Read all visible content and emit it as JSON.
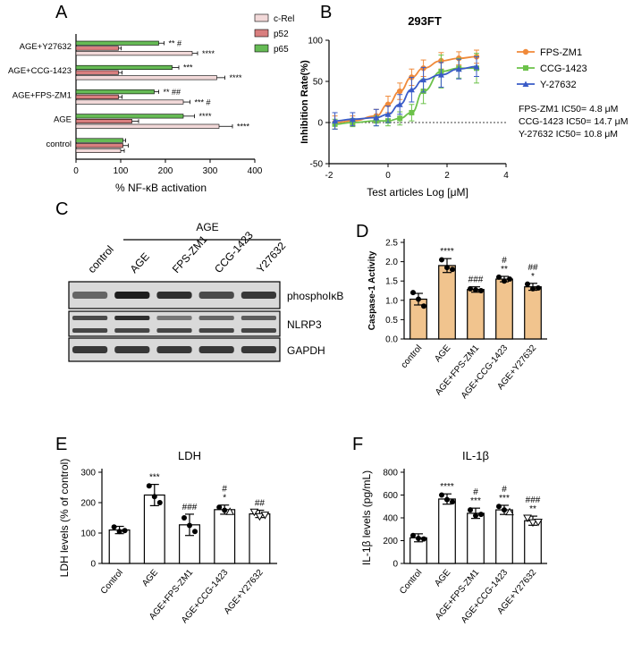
{
  "colors": {
    "crel": "#f2d9d9",
    "p52": "#d97f7f",
    "p65": "#66bb55",
    "fps": "#f08a3a",
    "ccg": "#6cc24a",
    "y27": "#3a5bc7",
    "caspase_fill": "#f1c48e",
    "white": "#ffffff",
    "black": "#000000"
  },
  "panels": {
    "A": {
      "letter": "A"
    },
    "B": {
      "letter": "B"
    },
    "C": {
      "letter": "C"
    },
    "D": {
      "letter": "D"
    },
    "E": {
      "letter": "E"
    },
    "F": {
      "letter": "F"
    }
  },
  "chart_data": [
    {
      "type": "bar",
      "panel": "A",
      "orientation": "horizontal",
      "xlabel": "% NF-κB activation",
      "xlim": [
        0,
        400
      ],
      "xticks": [
        "0",
        "100",
        "200",
        "300",
        "400"
      ],
      "categories": [
        "AGE+Y27632",
        "AGE+CCG-1423",
        "AGE+FPS-ZM1",
        "AGE",
        "control"
      ],
      "series": [
        {
          "name": "p65",
          "values": [
            185,
            215,
            175,
            240,
            105
          ],
          "errors": [
            12,
            15,
            10,
            25,
            6
          ],
          "sig": [
            "** #",
            "***",
            "** ##",
            "****",
            ""
          ]
        },
        {
          "name": "p52",
          "values": [
            95,
            95,
            95,
            125,
            105
          ],
          "errors": [
            6,
            8,
            8,
            15,
            12
          ],
          "sig": [
            "",
            "",
            "",
            "",
            ""
          ]
        },
        {
          "name": "c-Rel",
          "values": [
            260,
            315,
            240,
            320,
            100
          ],
          "errors": [
            12,
            18,
            15,
            30,
            8
          ],
          "sig": [
            "****",
            "****",
            "*** #",
            "****",
            ""
          ]
        }
      ],
      "legend": [
        "c-Rel",
        "p52",
        "p65"
      ]
    },
    {
      "type": "line",
      "panel": "B",
      "title": "293FT",
      "xlabel": "Test articles Log [μM]",
      "ylabel": "Inhibition Rate(%)",
      "xlim": [
        -2,
        4
      ],
      "ylim": [
        -50,
        100
      ],
      "xticks": [
        "-2",
        "0",
        "2",
        "4"
      ],
      "yticks": [
        "-50",
        "0",
        "50",
        "100"
      ],
      "series": [
        {
          "name": "FPS-ZM1",
          "x": [
            -1.8,
            -1.2,
            -0.4,
            0,
            0.4,
            0.8,
            1.2,
            1.8,
            2.4,
            3
          ],
          "y": [
            0,
            2,
            8,
            22,
            38,
            55,
            66,
            75,
            78,
            80
          ],
          "errors": [
            8,
            6,
            8,
            10,
            10,
            10,
            10,
            10,
            8,
            8
          ]
        },
        {
          "name": "CCG-1423",
          "x": [
            -1.8,
            -1.2,
            -0.4,
            0,
            0.4,
            0.8,
            1.2,
            1.8,
            2.4,
            3
          ],
          "y": [
            -2,
            0,
            2,
            2,
            5,
            12,
            38,
            62,
            66,
            66
          ],
          "errors": [
            6,
            5,
            6,
            6,
            8,
            10,
            15,
            20,
            12,
            18
          ]
        },
        {
          "name": "Y-27632",
          "x": [
            -1.8,
            -1.2,
            -0.4,
            0,
            0.4,
            0.8,
            1.2,
            1.8,
            2.4,
            3
          ],
          "y": [
            2,
            4,
            6,
            10,
            22,
            40,
            52,
            58,
            65,
            68
          ],
          "errors": [
            10,
            8,
            10,
            10,
            12,
            15,
            15,
            15,
            12,
            12
          ]
        }
      ],
      "annotations": [
        "FPS-ZM1 IC50= 4.8 μM",
        "CCG-1423 IC50= 14.7 μM",
        "Y-27632 IC50= 10.8 μM"
      ]
    },
    {
      "type": "bar",
      "panel": "D",
      "ylabel": "Caspase-1 Activity",
      "ylim": [
        0,
        2.5
      ],
      "yticks": [
        "0.0",
        "0.5",
        "1.0",
        "1.5",
        "2.0",
        "2.5"
      ],
      "categories": [
        "control",
        "AGE",
        "AGE+FPS-ZM1",
        "AGE+CCG-1423",
        "AGE+Y27632"
      ],
      "values": [
        1.03,
        1.9,
        1.28,
        1.55,
        1.35
      ],
      "errors": [
        0.15,
        0.18,
        0.07,
        0.07,
        0.09
      ],
      "points": [
        [
          1.2,
          1.03,
          0.85
        ],
        [
          2.05,
          1.85,
          1.8
        ],
        [
          1.3,
          1.27,
          1.25
        ],
        [
          1.6,
          1.5,
          1.55
        ],
        [
          1.42,
          1.3,
          1.32
        ]
      ],
      "sig_top": [
        "",
        "****",
        "",
        "#",
        "##"
      ],
      "sig_bottom": [
        "",
        "",
        "###",
        "**",
        "*"
      ]
    },
    {
      "type": "bar",
      "panel": "E",
      "title": "LDH",
      "ylabel": "LDH levels (% of control)",
      "ylim": [
        0,
        300
      ],
      "yticks": [
        "0",
        "100",
        "200",
        "300"
      ],
      "categories": [
        "Control",
        "AGE",
        "AGE+FPS-ZM1",
        "AGE+CCG-1423",
        "AGE+Y27632"
      ],
      "values": [
        110,
        225,
        127,
        177,
        163
      ],
      "errors": [
        12,
        35,
        35,
        15,
        12
      ],
      "points": [
        [
          120,
          105,
          108
        ],
        [
          255,
          220,
          200
        ],
        [
          150,
          125,
          105
        ],
        [
          185,
          175,
          170
        ],
        [
          170,
          155,
          160
        ]
      ],
      "sig_top": [
        "",
        "***",
        "###",
        "#",
        "##"
      ],
      "sig_bottom": [
        "",
        "",
        "",
        "*",
        ""
      ]
    },
    {
      "type": "bar",
      "panel": "F",
      "title": "IL-1β",
      "ylabel": "IL-1β levels (pg/mL)",
      "ylim": [
        0,
        800
      ],
      "yticks": [
        "0",
        "200",
        "400",
        "600",
        "800"
      ],
      "categories": [
        "Control",
        "AGE",
        "AGE+FPS-ZM1",
        "AGE+CCG-1423",
        "AGE+Y27632"
      ],
      "values": [
        225,
        565,
        440,
        470,
        375
      ],
      "errors": [
        35,
        45,
        45,
        40,
        40
      ],
      "points": [
        [
          245,
          220,
          215
        ],
        [
          600,
          560,
          540
        ],
        [
          470,
          420,
          430
        ],
        [
          500,
          470,
          450
        ],
        [
          400,
          360,
          365
        ]
      ],
      "sig_top": [
        "",
        "****",
        "#",
        "#",
        "###"
      ],
      "sig_bottom": [
        "",
        "",
        "***",
        "***",
        "**"
      ]
    }
  ],
  "blot": {
    "title": "AGE",
    "lanes": [
      "control",
      "AGE",
      "FPS-ZM1",
      "CCG-1423",
      "Y27632"
    ],
    "rows": [
      {
        "label": "phosphoIκB",
        "intensity": [
          0.55,
          0.95,
          0.85,
          0.7,
          0.8
        ]
      },
      {
        "label": "NLRP3",
        "intensity": [
          0.7,
          0.85,
          0.45,
          0.55,
          0.6
        ]
      },
      {
        "label": "GAPDH",
        "intensity": [
          0.8,
          0.8,
          0.8,
          0.8,
          0.8
        ]
      }
    ]
  }
}
